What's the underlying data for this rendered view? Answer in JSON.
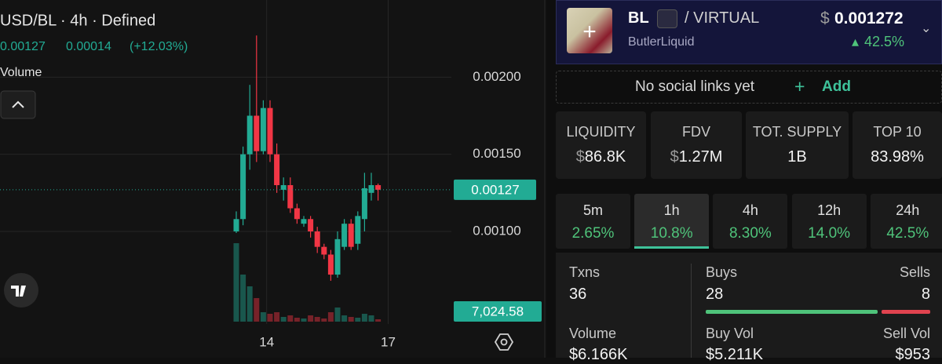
{
  "chart_data": {
    "type": "candlestick",
    "title": "USD/BL · 4h · Defined",
    "legend_values": [
      "0.00127",
      "0.00014",
      "(+12.03%)"
    ],
    "volume_title": "Volume",
    "categories": [
      null,
      null,
      null,
      null,
      null,
      null,
      null,
      null,
      null,
      null,
      null,
      null,
      null,
      null,
      null,
      null,
      null,
      null,
      null,
      null,
      null,
      null
    ],
    "open": [
      0.001,
      0.00108,
      0.0015,
      0.00175,
      0.00152,
      0.0018,
      0.0015,
      0.00127,
      0.0013,
      0.00115,
      0.00105,
      0.00108,
      0.001,
      0.0009,
      0.00085,
      0.00072,
      0.0009,
      0.00105,
      0.00092,
      0.00108,
      0.00125,
      0.0013
    ],
    "high": [
      0.00113,
      0.00155,
      0.00195,
      0.00227,
      0.00185,
      0.00185,
      0.00157,
      0.00135,
      0.00135,
      0.00118,
      0.0011,
      0.0011,
      0.00103,
      0.00092,
      0.00088,
      0.001,
      0.00108,
      0.00108,
      0.00113,
      0.00138,
      0.00138,
      0.00131
    ],
    "low": [
      0.00099,
      0.00104,
      0.0014,
      0.00145,
      0.0015,
      0.00145,
      0.00125,
      0.0012,
      0.00112,
      0.00105,
      0.00103,
      0.00096,
      0.00086,
      0.00082,
      0.00068,
      0.0007,
      0.00088,
      0.00088,
      0.00088,
      0.001,
      0.0012,
      0.0012
    ],
    "close": [
      0.00108,
      0.0015,
      0.00175,
      0.00152,
      0.0018,
      0.0015,
      0.0013,
      0.0013,
      0.00115,
      0.00108,
      0.00108,
      0.001,
      0.0009,
      0.00085,
      0.00072,
      0.00095,
      0.00105,
      0.0009,
      0.0011,
      0.00128,
      0.0013,
      0.00127
    ],
    "volume": [
      234153,
      140492,
      105369,
      70246,
      28098,
      23415,
      28098,
      14049,
      18732,
      11708,
      9366,
      18732,
      14049,
      9366,
      28098,
      42148,
      18732,
      14049,
      11708,
      23415,
      18732,
      7024.58
    ],
    "last_price": 0.00127,
    "last_volume": {
      "value": 7024.58,
      "label": "7,024.58"
    },
    "ylim": [
      0.0004,
      0.0025
    ],
    "yticks": [
      {
        "value": 0.001,
        "label": "0.00100"
      },
      {
        "value": 0.0015,
        "label": "0.00150"
      },
      {
        "value": 0.002,
        "label": "0.00200"
      }
    ],
    "xticks": [
      {
        "value": 4.5,
        "label": "14"
      },
      {
        "value": 22.5,
        "label": "17"
      }
    ],
    "up_color": "#22ab94",
    "down_color": "#f23645",
    "grid": true
  },
  "token": {
    "symbol": "BL",
    "quote": "/ VIRTUAL",
    "currency": "$",
    "price": "0.001272",
    "name": "ButlerLiquid",
    "change": "42.5%"
  },
  "social": {
    "text": "No social links yet",
    "action": "Add"
  },
  "stats": [
    {
      "label": "LIQUIDITY",
      "currency": "$",
      "value": "86.8K"
    },
    {
      "label": "FDV",
      "currency": "$",
      "value": "1.27M"
    },
    {
      "label": "TOT. SUPPLY",
      "value": "1B"
    },
    {
      "label": "TOP 10",
      "value": "83.98%"
    }
  ],
  "timeframes": [
    {
      "label": "5m",
      "value": "2.65%"
    },
    {
      "label": "1h",
      "value": "10.8%"
    },
    {
      "label": "4h",
      "value": "8.30%"
    },
    {
      "label": "12h",
      "value": "14.0%"
    },
    {
      "label": "24h",
      "value": "42.5%"
    }
  ],
  "txns": {
    "txns_label": "Txns",
    "txns": 36,
    "buys_label": "Buys",
    "buys": 28,
    "sells_label": "Sells",
    "sells": 8,
    "volume_label": "Volume",
    "volume": "$6.166K",
    "buy_vol_label": "Buy Vol",
    "buy_vol": "$5.211K",
    "sell_vol_label": "Sell Vol",
    "sell_vol": "$953"
  }
}
